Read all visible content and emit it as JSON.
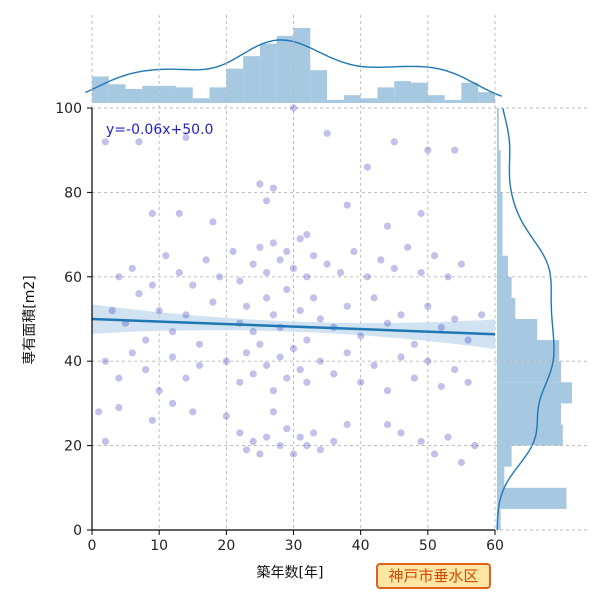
{
  "chart_data": {
    "type": "scatter",
    "xlabel": "築年数[年]",
    "ylabel": "専有面積[m2]",
    "xlim": [
      0,
      60
    ],
    "ylim": [
      0,
      100
    ],
    "x_ticks": [
      "0",
      "10",
      "20",
      "30",
      "40",
      "50",
      "60"
    ],
    "y_ticks": [
      "0",
      "20",
      "40",
      "60",
      "80",
      "100"
    ],
    "grid": true,
    "regression": {
      "label": "y=-0.06x+50.0",
      "slope": -0.06,
      "intercept": 50.0,
      "color": "#1f77b4",
      "band_color": "#c6dcef"
    },
    "point_color": "#2020b0",
    "hist_color": "#a6c8e0",
    "kde_color": "#1f77b4",
    "x_hist_counts": [
      17,
      12,
      9,
      11,
      11,
      10,
      3,
      10,
      22,
      30,
      38,
      43,
      48,
      21,
      2,
      5,
      3,
      10,
      14,
      13,
      5,
      2,
      13,
      7
    ],
    "y_hist_counts": [
      2,
      38,
      4,
      8,
      36,
      35,
      41,
      35,
      34,
      22,
      10,
      8,
      6,
      3,
      3,
      3,
      2,
      2,
      1,
      1
    ],
    "points": [
      [
        2,
        92
      ],
      [
        7,
        92
      ],
      [
        14,
        93
      ],
      [
        30,
        100
      ],
      [
        35,
        94
      ],
      [
        45,
        92
      ],
      [
        50,
        90
      ],
      [
        54,
        90
      ],
      [
        9,
        75
      ],
      [
        13,
        75
      ],
      [
        18,
        73
      ],
      [
        25,
        82
      ],
      [
        26,
        78
      ],
      [
        27,
        81
      ],
      [
        32,
        70
      ],
      [
        38,
        77
      ],
      [
        41,
        86
      ],
      [
        44,
        72
      ],
      [
        49,
        75
      ],
      [
        3,
        52
      ],
      [
        5,
        49
      ],
      [
        7,
        56
      ],
      [
        8,
        45
      ],
      [
        10,
        52
      ],
      [
        12,
        47
      ],
      [
        14,
        51
      ],
      [
        16,
        44
      ],
      [
        18,
        54
      ],
      [
        22,
        49
      ],
      [
        23,
        53
      ],
      [
        24,
        47
      ],
      [
        26,
        55
      ],
      [
        27,
        51
      ],
      [
        28,
        48
      ],
      [
        29,
        57
      ],
      [
        31,
        52
      ],
      [
        32,
        45
      ],
      [
        33,
        55
      ],
      [
        34,
        50
      ],
      [
        36,
        48
      ],
      [
        38,
        53
      ],
      [
        40,
        46
      ],
      [
        42,
        55
      ],
      [
        44,
        49
      ],
      [
        46,
        51
      ],
      [
        48,
        44
      ],
      [
        50,
        53
      ],
      [
        52,
        48
      ],
      [
        54,
        50
      ],
      [
        56,
        45
      ],
      [
        58,
        51
      ],
      [
        4,
        60
      ],
      [
        6,
        62
      ],
      [
        9,
        58
      ],
      [
        11,
        65
      ],
      [
        13,
        61
      ],
      [
        15,
        58
      ],
      [
        17,
        64
      ],
      [
        19,
        60
      ],
      [
        21,
        66
      ],
      [
        22,
        59
      ],
      [
        24,
        63
      ],
      [
        25,
        67
      ],
      [
        26,
        61
      ],
      [
        27,
        68
      ],
      [
        28,
        64
      ],
      [
        29,
        66
      ],
      [
        30,
        62
      ],
      [
        31,
        69
      ],
      [
        32,
        60
      ],
      [
        33,
        65
      ],
      [
        35,
        63
      ],
      [
        37,
        61
      ],
      [
        39,
        66
      ],
      [
        41,
        60
      ],
      [
        43,
        64
      ],
      [
        45,
        62
      ],
      [
        47,
        67
      ],
      [
        49,
        61
      ],
      [
        51,
        65
      ],
      [
        53,
        60
      ],
      [
        55,
        63
      ],
      [
        2,
        40
      ],
      [
        4,
        36
      ],
      [
        6,
        42
      ],
      [
        8,
        38
      ],
      [
        10,
        33
      ],
      [
        12,
        41
      ],
      [
        14,
        36
      ],
      [
        16,
        39
      ],
      [
        20,
        40
      ],
      [
        22,
        35
      ],
      [
        23,
        42
      ],
      [
        24,
        37
      ],
      [
        25,
        44
      ],
      [
        26,
        39
      ],
      [
        27,
        33
      ],
      [
        28,
        41
      ],
      [
        29,
        36
      ],
      [
        30,
        43
      ],
      [
        31,
        38
      ],
      [
        32,
        35
      ],
      [
        34,
        40
      ],
      [
        36,
        37
      ],
      [
        38,
        42
      ],
      [
        40,
        35
      ],
      [
        42,
        39
      ],
      [
        44,
        33
      ],
      [
        46,
        41
      ],
      [
        48,
        36
      ],
      [
        50,
        40
      ],
      [
        52,
        34
      ],
      [
        54,
        38
      ],
      [
        56,
        35
      ],
      [
        1,
        28
      ],
      [
        2,
        21
      ],
      [
        4,
        29
      ],
      [
        9,
        26
      ],
      [
        12,
        30
      ],
      [
        15,
        28
      ],
      [
        20,
        27
      ],
      [
        22,
        23
      ],
      [
        23,
        19
      ],
      [
        24,
        21
      ],
      [
        25,
        18
      ],
      [
        26,
        22
      ],
      [
        27,
        28
      ],
      [
        28,
        20
      ],
      [
        29,
        24
      ],
      [
        30,
        18
      ],
      [
        31,
        22
      ],
      [
        32,
        20
      ],
      [
        33,
        23
      ],
      [
        34,
        19
      ],
      [
        36,
        21
      ],
      [
        38,
        25
      ],
      [
        44,
        25
      ],
      [
        46,
        23
      ],
      [
        49,
        21
      ],
      [
        51,
        18
      ],
      [
        53,
        22
      ],
      [
        55,
        16
      ],
      [
        57,
        20
      ]
    ]
  },
  "badge": {
    "text": "神戸市垂水区"
  }
}
